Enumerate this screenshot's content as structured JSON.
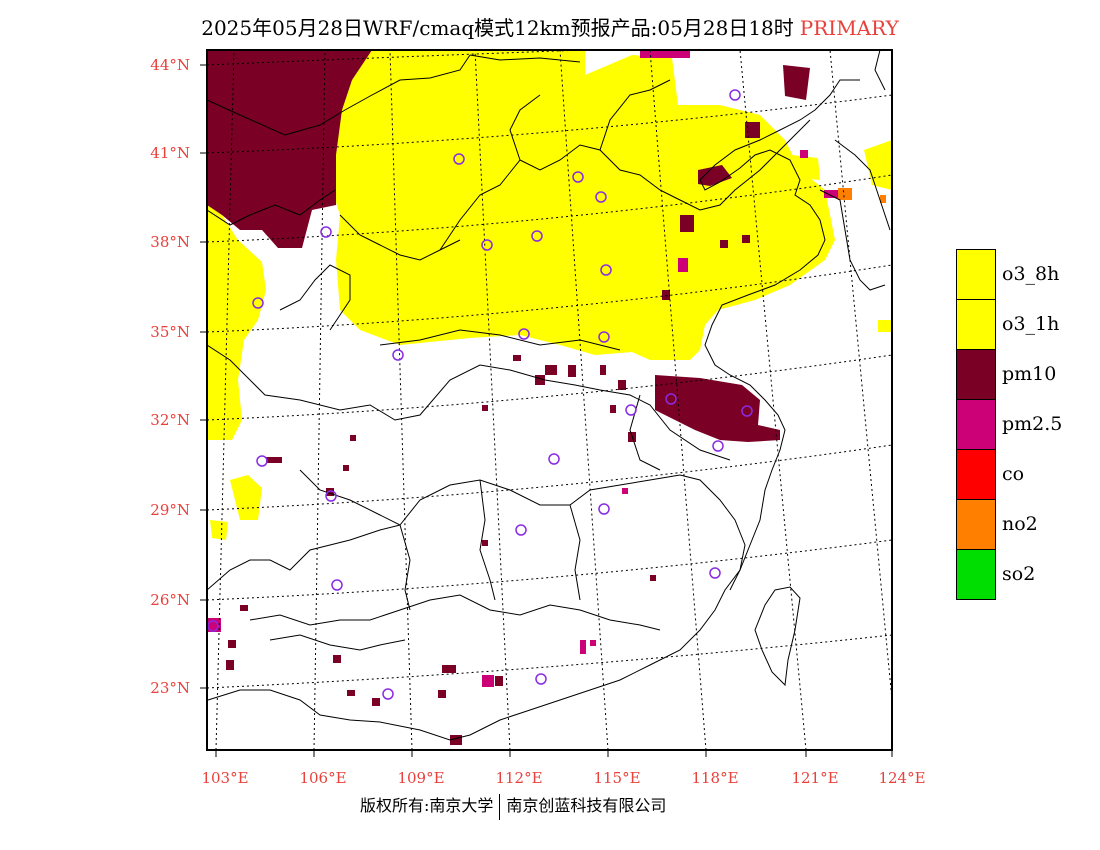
{
  "title": {
    "main": "2025年05月28日WRF/cmaq模式12km预报产品:05月28日18时",
    "tag": "PRIMARY"
  },
  "map": {
    "lat_labels": [
      "44°N",
      "41°N",
      "38°N",
      "35°N",
      "32°N",
      "29°N",
      "26°N",
      "23°N"
    ],
    "lon_labels": [
      "103°E",
      "106°E",
      "109°E",
      "112°E",
      "115°E",
      "118°E",
      "121°E",
      "124°E"
    ]
  },
  "legend": {
    "items": [
      {
        "label": "o3_8h",
        "color": "#ffff00"
      },
      {
        "label": "o3_1h",
        "color": "#ffff00"
      },
      {
        "label": "pm10",
        "color": "#7a0026"
      },
      {
        "label": "pm2.5",
        "color": "#cc0077"
      },
      {
        "label": "co",
        "color": "#ff0000"
      },
      {
        "label": "no2",
        "color": "#ff7f00"
      },
      {
        "label": "so2",
        "color": "#00dd00"
      }
    ]
  },
  "colors": {
    "o3": "#ffff00",
    "pm10": "#7a0026",
    "pm25": "#cc0077",
    "no2": "#ff7f00",
    "station_marker": "#8a2be2",
    "tag": "#e8413c"
  },
  "footer": {
    "left": "版权所有:南京大学",
    "right": "南京创蓝科技有限公司"
  }
}
